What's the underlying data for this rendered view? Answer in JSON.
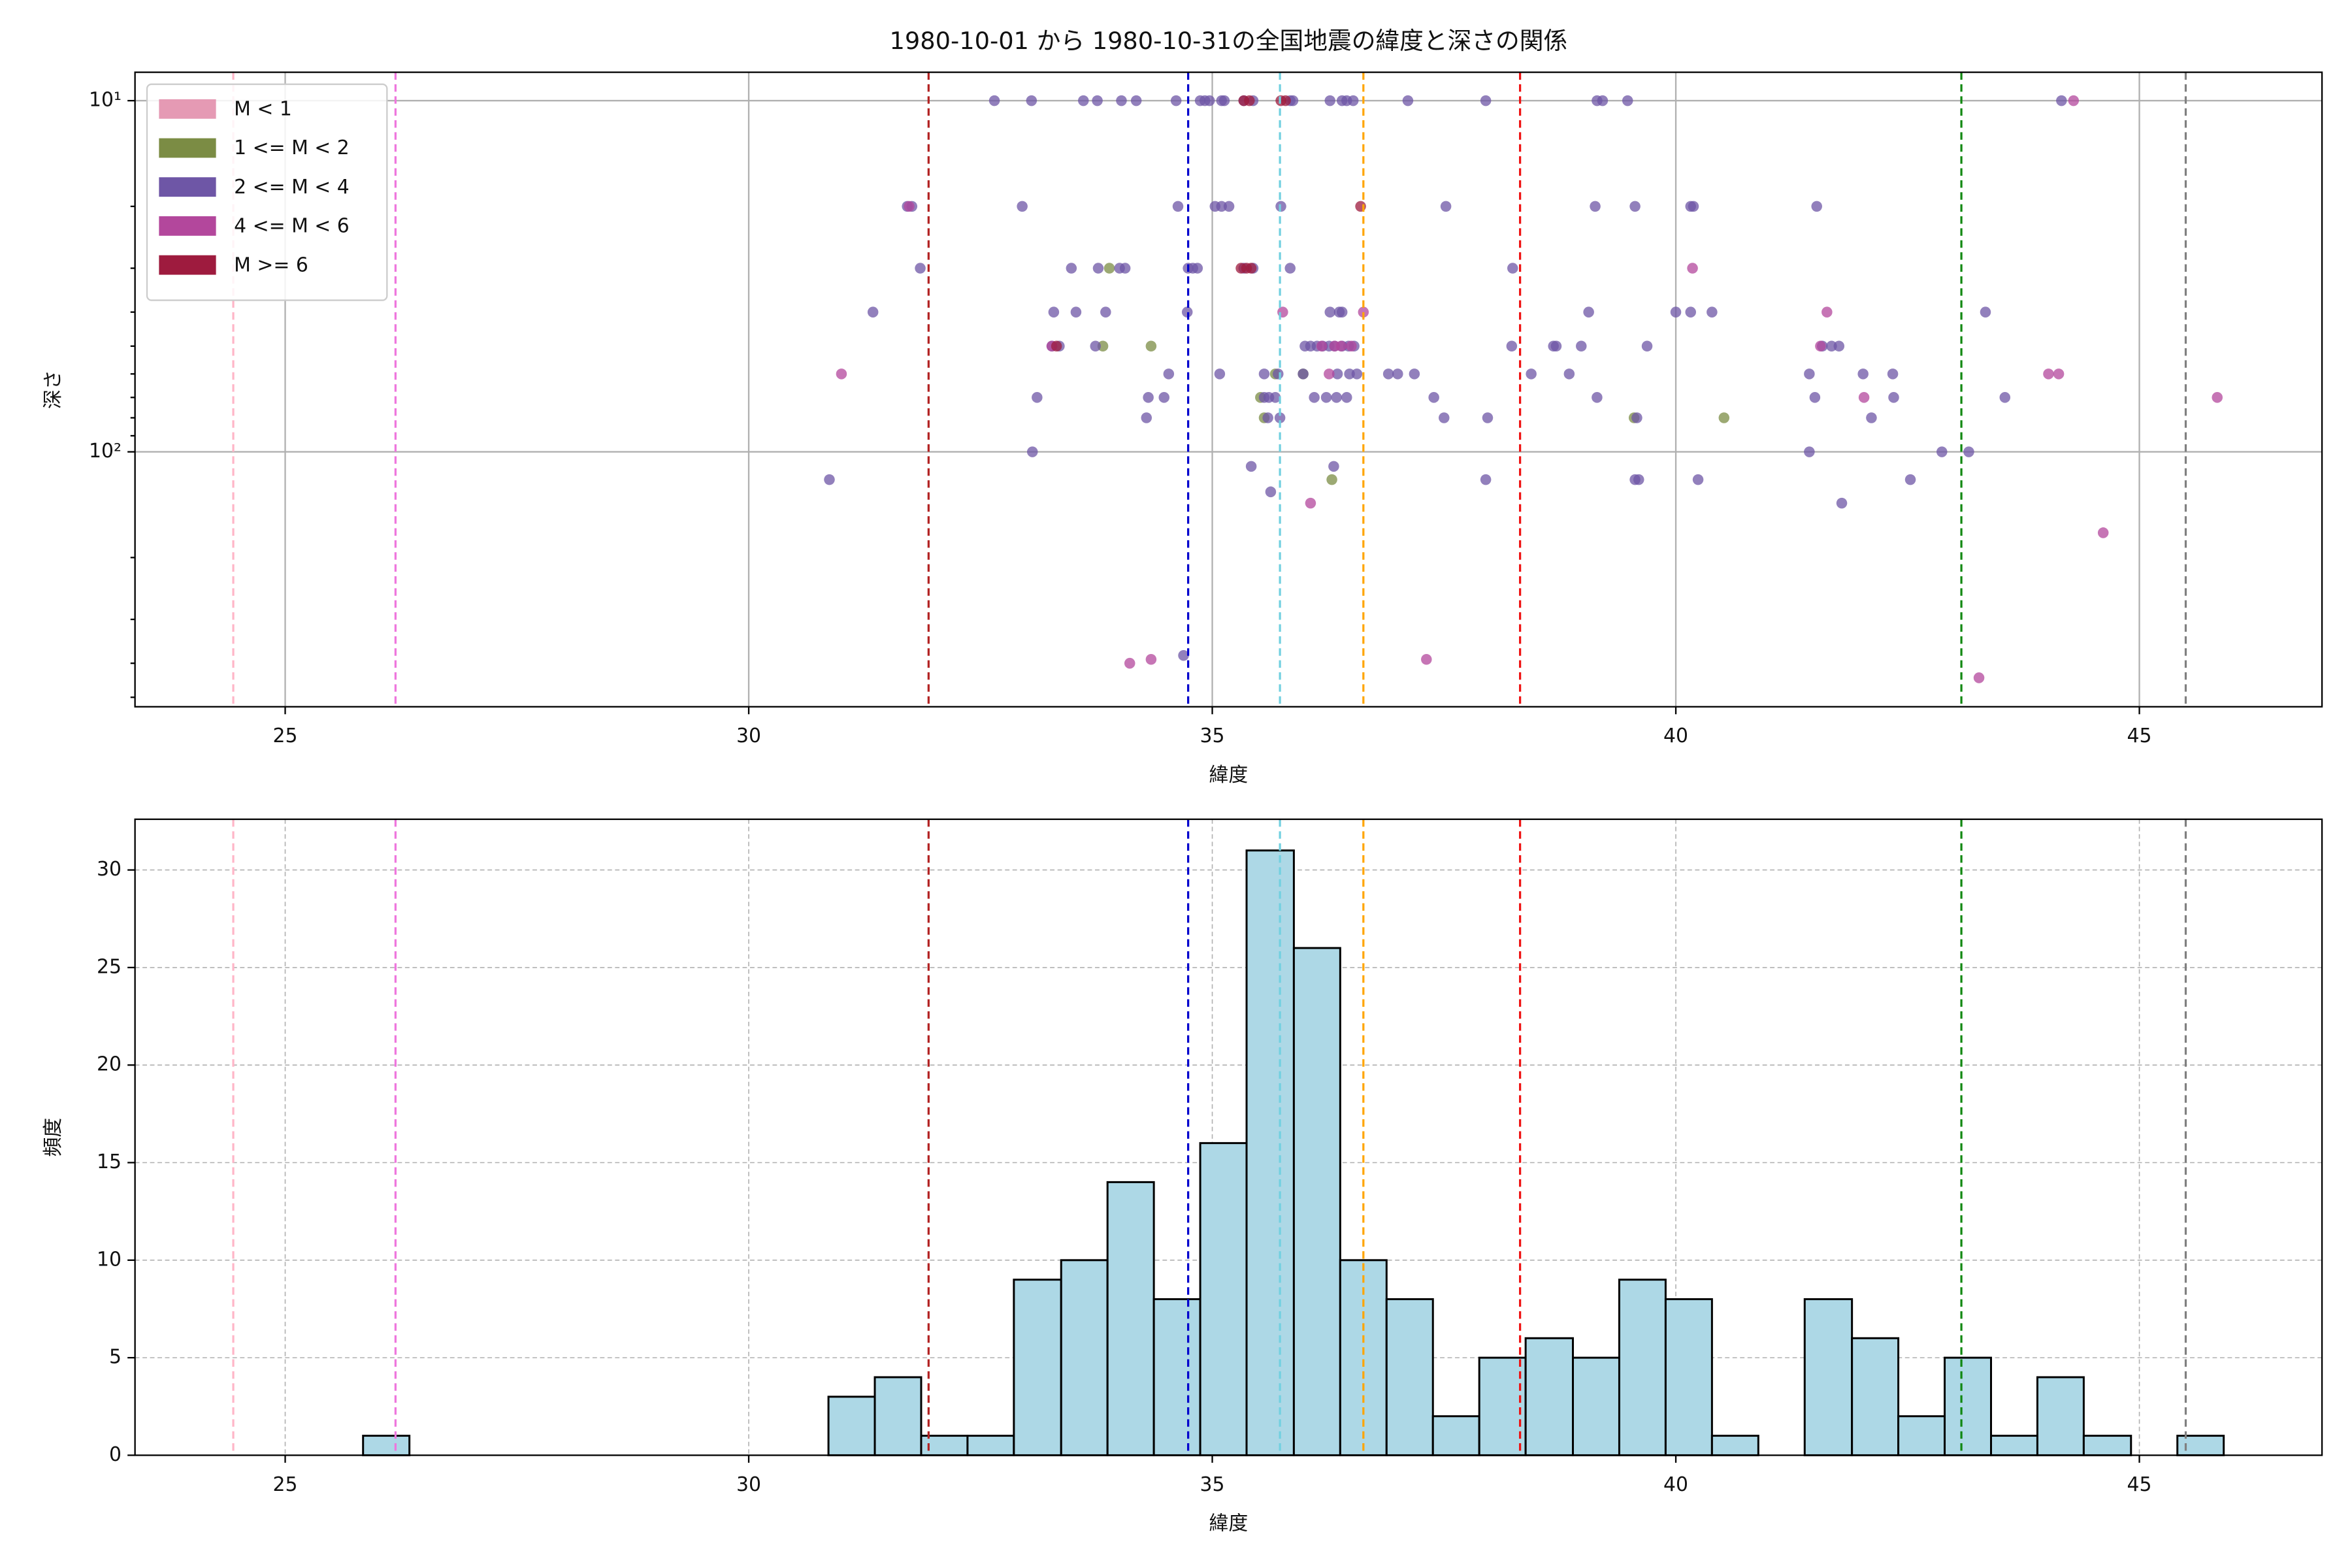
{
  "chart_data": [
    {
      "type": "scatter",
      "title": "1980-10-01 から 1980-10-31の全国地震の緯度と深さの関係",
      "x_label": "緯度",
      "y_label": "深さ",
      "xlim": [
        23.38,
        46.97
      ],
      "xticks": [
        25,
        30,
        35,
        40,
        45
      ],
      "ylim": [
        532,
        8.3
      ],
      "log_y": true,
      "yticks": [
        {
          "value": 10,
          "label": "10¹"
        },
        {
          "value": 100,
          "label": "10²"
        }
      ],
      "yminorticks": [
        20,
        30,
        40,
        50,
        60,
        70,
        80,
        90,
        200,
        300,
        400,
        500
      ],
      "grid": true,
      "legend": "upper left",
      "vlines": [
        {
          "x": 24.44,
          "color": "#ffb6c8"
        },
        {
          "x": 26.19,
          "color": "#ee77dd"
        },
        {
          "x": 31.94,
          "color": "#b22222"
        },
        {
          "x": 34.74,
          "color": "#0000cc"
        },
        {
          "x": 35.73,
          "color": "#72d0e0"
        },
        {
          "x": 36.63,
          "color": "#ffa500"
        },
        {
          "x": 38.32,
          "color": "#ee1111"
        },
        {
          "x": 43.08,
          "color": "#118811"
        },
        {
          "x": 45.5,
          "color": "#808080"
        }
      ],
      "series": [
        {
          "name": "M < 1",
          "color": "#e59ab4",
          "x": [],
          "values": []
        },
        {
          "name": "1 <= M < 2",
          "color": "#7b8c44",
          "x": [
            33.89,
            33.82,
            34.34,
            35.68,
            35.98,
            35.52,
            35.56,
            39.55,
            40.52,
            36.29
          ],
          "values": [
            30,
            50,
            50,
            60,
            60,
            70,
            80,
            80,
            80,
            120
          ]
        },
        {
          "name": "2 <= M < 4",
          "color": "#6e56a6",
          "x": [
            32.65,
            33.05,
            33.61,
            33.76,
            34.02,
            34.18,
            34.61,
            34.87,
            34.92,
            34.97,
            35.1,
            35.13,
            35.34,
            35.44,
            35.84,
            35.87,
            36.27,
            36.4,
            36.45,
            36.52,
            37.11,
            37.95,
            39.15,
            39.21,
            39.48,
            44.16,
            31.71,
            31.76,
            32.95,
            34.63,
            35.03,
            35.1,
            35.18,
            35.74,
            37.52,
            39.13,
            39.56,
            40.16,
            40.19,
            41.52,
            31.85,
            33.48,
            33.77,
            34.0,
            34.06,
            34.74,
            34.79,
            34.84,
            35.34,
            35.44,
            35.84,
            38.24,
            31.34,
            33.29,
            33.53,
            33.85,
            34.73,
            36.27,
            36.37,
            36.4,
            39.06,
            40.0,
            40.16,
            40.39,
            43.34,
            33.27,
            33.35,
            33.74,
            36.0,
            36.06,
            36.13,
            36.19,
            36.26,
            36.32,
            36.4,
            36.47,
            36.53,
            38.23,
            38.68,
            38.71,
            38.98,
            39.69,
            41.58,
            41.68,
            41.76,
            34.53,
            35.08,
            35.56,
            35.71,
            35.98,
            36.35,
            36.48,
            36.56,
            36.9,
            37.0,
            37.18,
            38.44,
            38.85,
            41.44,
            42.02,
            42.34,
            33.11,
            34.31,
            34.48,
            35.56,
            35.61,
            35.68,
            36.1,
            36.23,
            36.34,
            36.45,
            37.39,
            39.15,
            41.5,
            42.35,
            43.55,
            34.29,
            35.6,
            35.73,
            37.5,
            37.97,
            39.58,
            42.11,
            33.06,
            41.44,
            42.87,
            43.16,
            35.42,
            36.31,
            30.87,
            37.95,
            39.56,
            39.6,
            40.24,
            42.53,
            35.63,
            41.79,
            34.69
          ],
          "values": [
            10,
            10,
            10,
            10,
            10,
            10,
            10,
            10,
            10,
            10,
            10,
            10,
            10,
            10,
            10,
            10,
            10,
            10,
            10,
            10,
            10,
            10,
            10,
            10,
            10,
            10,
            20,
            20,
            20,
            20,
            20,
            20,
            20,
            20,
            20,
            20,
            20,
            20,
            20,
            20,
            30,
            30,
            30,
            30,
            30,
            30,
            30,
            30,
            30,
            30,
            30,
            30,
            40,
            40,
            40,
            40,
            40,
            40,
            40,
            40,
            40,
            40,
            40,
            40,
            40,
            50,
            50,
            50,
            50,
            50,
            50,
            50,
            50,
            50,
            50,
            50,
            50,
            50,
            50,
            50,
            50,
            50,
            50,
            50,
            50,
            60,
            60,
            60,
            60,
            60,
            60,
            60,
            60,
            60,
            60,
            60,
            60,
            60,
            60,
            60,
            60,
            70,
            70,
            70,
            70,
            70,
            70,
            70,
            70,
            70,
            70,
            70,
            70,
            70,
            70,
            70,
            80,
            80,
            80,
            80,
            80,
            80,
            80,
            100,
            100,
            100,
            100,
            110,
            110,
            120,
            120,
            120,
            120,
            120,
            120,
            130,
            140,
            380
          ]
        },
        {
          "name": "4 <= M < 6",
          "color": "#b3479c",
          "x": [
            44.29,
            31.73,
            40.18,
            35.76,
            36.63,
            41.63,
            33.27,
            36.18,
            36.32,
            36.39,
            36.5,
            41.56,
            31.0,
            36.26,
            44.02,
            44.13,
            42.03,
            45.84,
            36.06,
            44.61,
            34.11,
            34.34,
            37.31,
            43.27
          ],
          "values": [
            10,
            20,
            30,
            40,
            40,
            40,
            50,
            50,
            50,
            50,
            50,
            50,
            60,
            60,
            60,
            60,
            70,
            70,
            140,
            170,
            400,
            390,
            390,
            440
          ]
        },
        {
          "name": "M >= 6",
          "color": "#9e1b3e",
          "x": [
            35.34,
            35.4,
            35.74,
            35.79,
            36.6,
            35.31,
            35.37,
            35.42,
            33.32
          ],
          "values": [
            10,
            10,
            10,
            10,
            20,
            30,
            30,
            30,
            50
          ]
        }
      ]
    },
    {
      "type": "histogram",
      "x_label": "緯度",
      "y_label": "頻度",
      "color": "#add8e6",
      "edgecolor": "#000000",
      "xlim": [
        23.38,
        46.97
      ],
      "xticks": [
        25,
        30,
        35,
        40,
        45
      ],
      "ylim": [
        0,
        32.6
      ],
      "yticks": [
        0,
        5,
        10,
        15,
        20,
        25,
        30
      ],
      "grid": true,
      "vlines": [
        {
          "x": 24.44,
          "color": "#ffb6c8"
        },
        {
          "x": 26.19,
          "color": "#ee77dd"
        },
        {
          "x": 31.94,
          "color": "#b22222"
        },
        {
          "x": 34.74,
          "color": "#0000cc"
        },
        {
          "x": 35.73,
          "color": "#72d0e0"
        },
        {
          "x": 36.63,
          "color": "#ffa500"
        },
        {
          "x": 38.32,
          "color": "#ee1111"
        },
        {
          "x": 43.08,
          "color": "#118811"
        },
        {
          "x": 45.5,
          "color": "#808080"
        }
      ],
      "bins": [
        25.84,
        26.34,
        26.84,
        27.35,
        27.85,
        28.35,
        28.85,
        29.35,
        29.85,
        30.36,
        30.86,
        31.36,
        31.86,
        32.36,
        32.86,
        33.37,
        33.87,
        34.37,
        34.87,
        35.37,
        35.88,
        36.38,
        36.88,
        37.38,
        37.88,
        38.38,
        38.89,
        39.39,
        39.89,
        40.39,
        40.89,
        41.39,
        41.9,
        42.4,
        42.9,
        43.4,
        43.9,
        44.4,
        44.91,
        45.41,
        45.91
      ],
      "values": [
        1,
        0,
        0,
        0,
        0,
        0,
        0,
        0,
        0,
        0,
        3,
        4,
        1,
        1,
        9,
        10,
        14,
        8,
        16,
        31,
        26,
        10,
        8,
        2,
        5,
        6,
        5,
        9,
        8,
        1,
        0,
        8,
        6,
        2,
        5,
        1,
        4,
        1,
        0,
        1
      ]
    }
  ]
}
